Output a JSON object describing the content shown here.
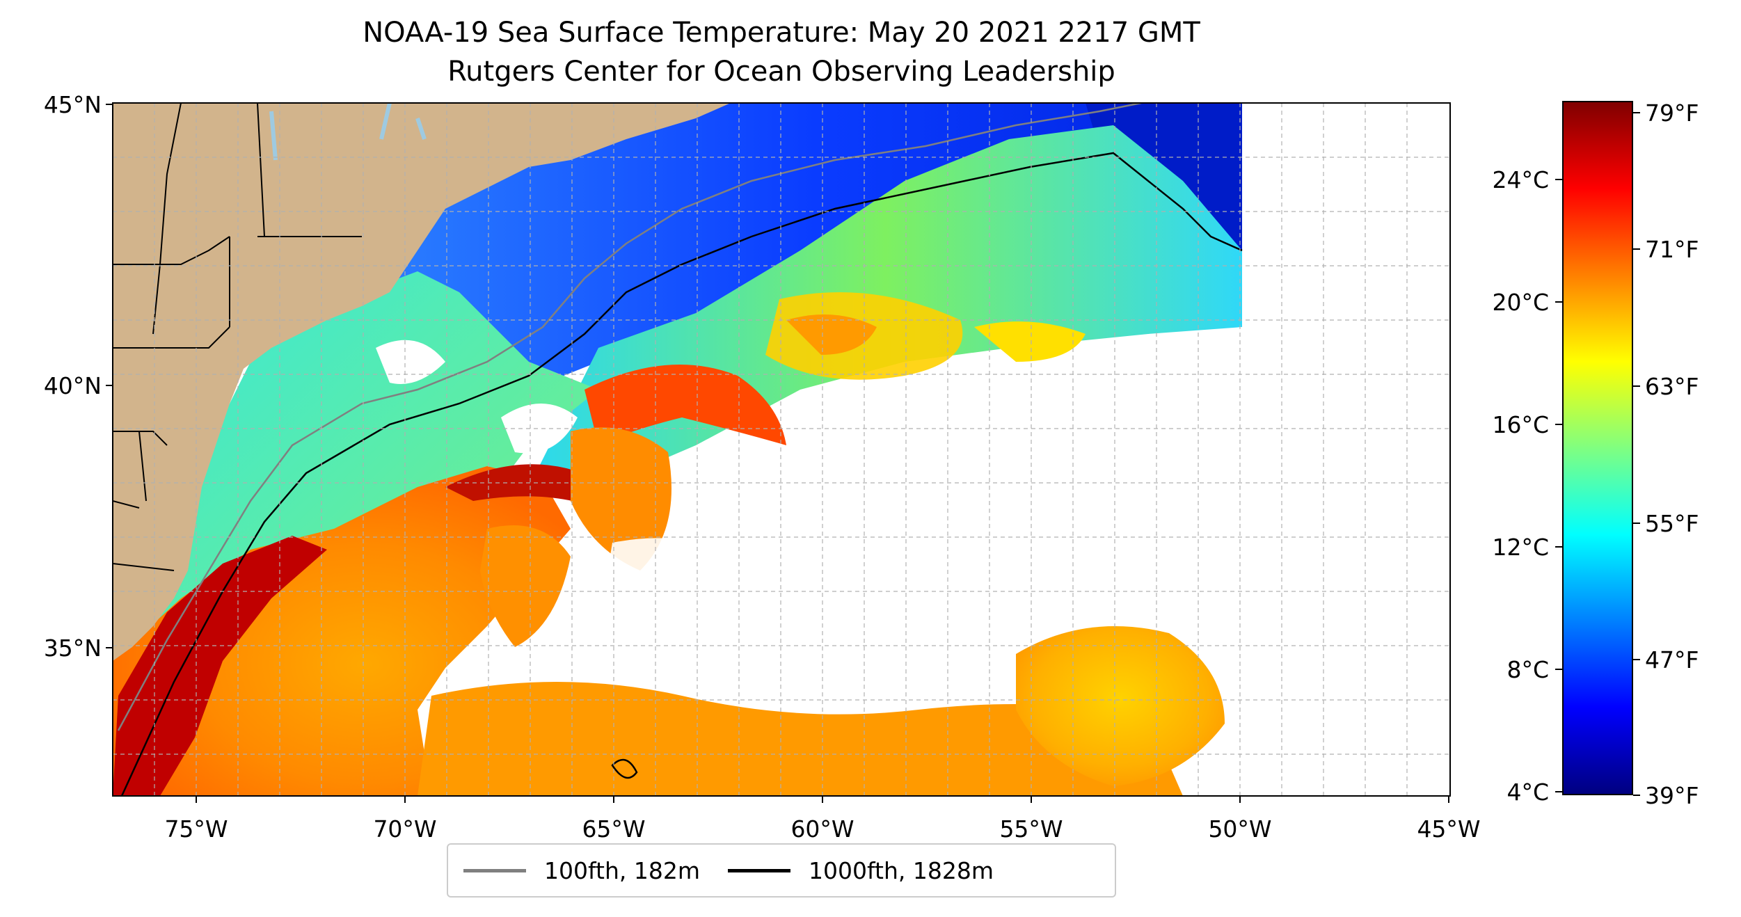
{
  "title": "NOAA-19 Sea Surface Temperature: May 20 2021 2217 GMT",
  "subtitle": "Rutgers Center for Ocean Observing Leadership",
  "map": {
    "lon_ticks": [
      "75°W",
      "70°W",
      "65°W",
      "60°W",
      "55°W",
      "50°W",
      "45°W"
    ],
    "lat_ticks": [
      "45°N",
      "40°N",
      "35°N"
    ],
    "lon_range": [
      -77,
      -45
    ],
    "lat_range": [
      32.3,
      45
    ],
    "land_color": "#d2b48c",
    "lake_color": "#9ecae1",
    "grid": "dashed"
  },
  "legend": {
    "items": [
      {
        "label": "100fth, 182m",
        "color": "#808080"
      },
      {
        "label": "1000fth, 1828m",
        "color": "#000000"
      }
    ]
  },
  "colorbar": {
    "celsius_ticks": [
      "24°C",
      "20°C",
      "16°C",
      "12°C",
      "8°C",
      "4°C"
    ],
    "fahrenheit_ticks": [
      "79°F",
      "71°F",
      "63°F",
      "55°F",
      "47°F",
      "39°F"
    ],
    "colormap": "jet",
    "colors": [
      "#800000",
      "#ff0000",
      "#ff8000",
      "#ffff00",
      "#80ff80",
      "#00ffff",
      "#0080ff",
      "#0000ff",
      "#000080"
    ]
  }
}
